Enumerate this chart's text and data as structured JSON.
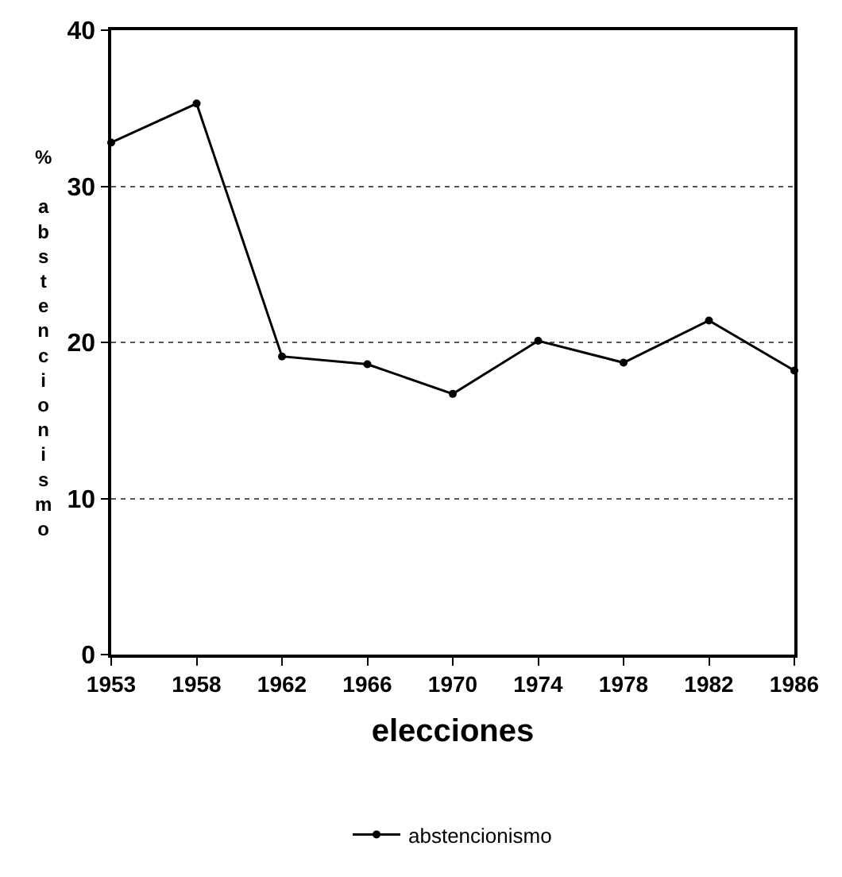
{
  "chart_data": {
    "type": "line",
    "xlabel": "elecciones",
    "ylabel": "% abstencionismo",
    "categories": [
      "1953",
      "1958",
      "1962",
      "1966",
      "1970",
      "1974",
      "1978",
      "1982",
      "1986"
    ],
    "series": [
      {
        "name": "abstencionismo",
        "color": "#000000",
        "values": [
          32.8,
          35.3,
          19.1,
          18.6,
          16.7,
          20.1,
          18.7,
          21.4,
          18.2
        ]
      }
    ],
    "ylim": [
      0,
      40
    ],
    "yticks": [
      0,
      10,
      20,
      30,
      40
    ],
    "grid": "y",
    "legend": "bottom",
    "marker": "circle",
    "line_style": "solid"
  }
}
